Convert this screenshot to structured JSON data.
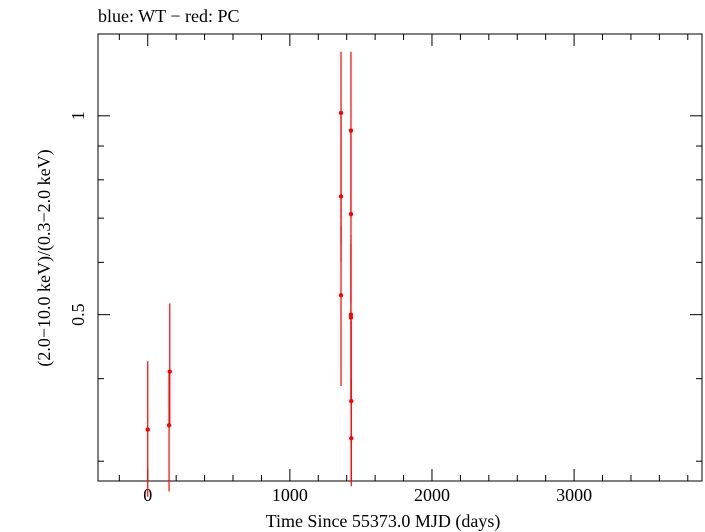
{
  "chart_data": {
    "type": "scatter",
    "title": "blue: WT − red: PC",
    "xlabel": "Time Since 55373.0 MJD (days)",
    "ylabel": "(2.0−10.0 keV)/(0.3−2.0 keV)",
    "xlim": [
      -350,
      3900
    ],
    "ylim": [
      0.28,
      1.33
    ],
    "y_scale": "log",
    "x_ticks": [
      0,
      1000,
      2000,
      3000
    ],
    "x_tick_labels": [
      "0",
      "1000",
      "2000",
      "3000"
    ],
    "y_ticks": [
      0.5,
      1
    ],
    "y_tick_labels": [
      "0.5",
      "1"
    ],
    "grid": false,
    "series": [
      {
        "color": "#ff0000",
        "points": [
          {
            "x": 0,
            "y": 0.335,
            "ylo": 0.265,
            "yhi": 0.425
          },
          {
            "x": 150,
            "y": 0.34,
            "ylo": 0.27,
            "yhi": 0.41
          },
          {
            "x": 155,
            "y": 0.41,
            "ylo": 0.34,
            "yhi": 0.52
          },
          {
            "x": 1360,
            "y": 1.01,
            "ylo": 0.64,
            "yhi": 1.25
          },
          {
            "x": 1360,
            "y": 0.755,
            "ylo": 0.6,
            "yhi": 1.0
          },
          {
            "x": 1360,
            "y": 0.535,
            "ylo": 0.39,
            "yhi": 0.68
          },
          {
            "x": 1430,
            "y": 0.95,
            "ylo": 0.7,
            "yhi": 1.25
          },
          {
            "x": 1430,
            "y": 0.71,
            "ylo": 0.52,
            "yhi": 0.95
          },
          {
            "x": 1430,
            "y": 0.5,
            "ylo": 0.37,
            "yhi": 0.66
          },
          {
            "x": 1430,
            "y": 0.495,
            "ylo": 0.37,
            "yhi": 0.64
          },
          {
            "x": 1432,
            "y": 0.37,
            "ylo": 0.28,
            "yhi": 0.49
          },
          {
            "x": 1432,
            "y": 0.325,
            "ylo": 0.275,
            "yhi": 0.4
          }
        ]
      }
    ]
  }
}
